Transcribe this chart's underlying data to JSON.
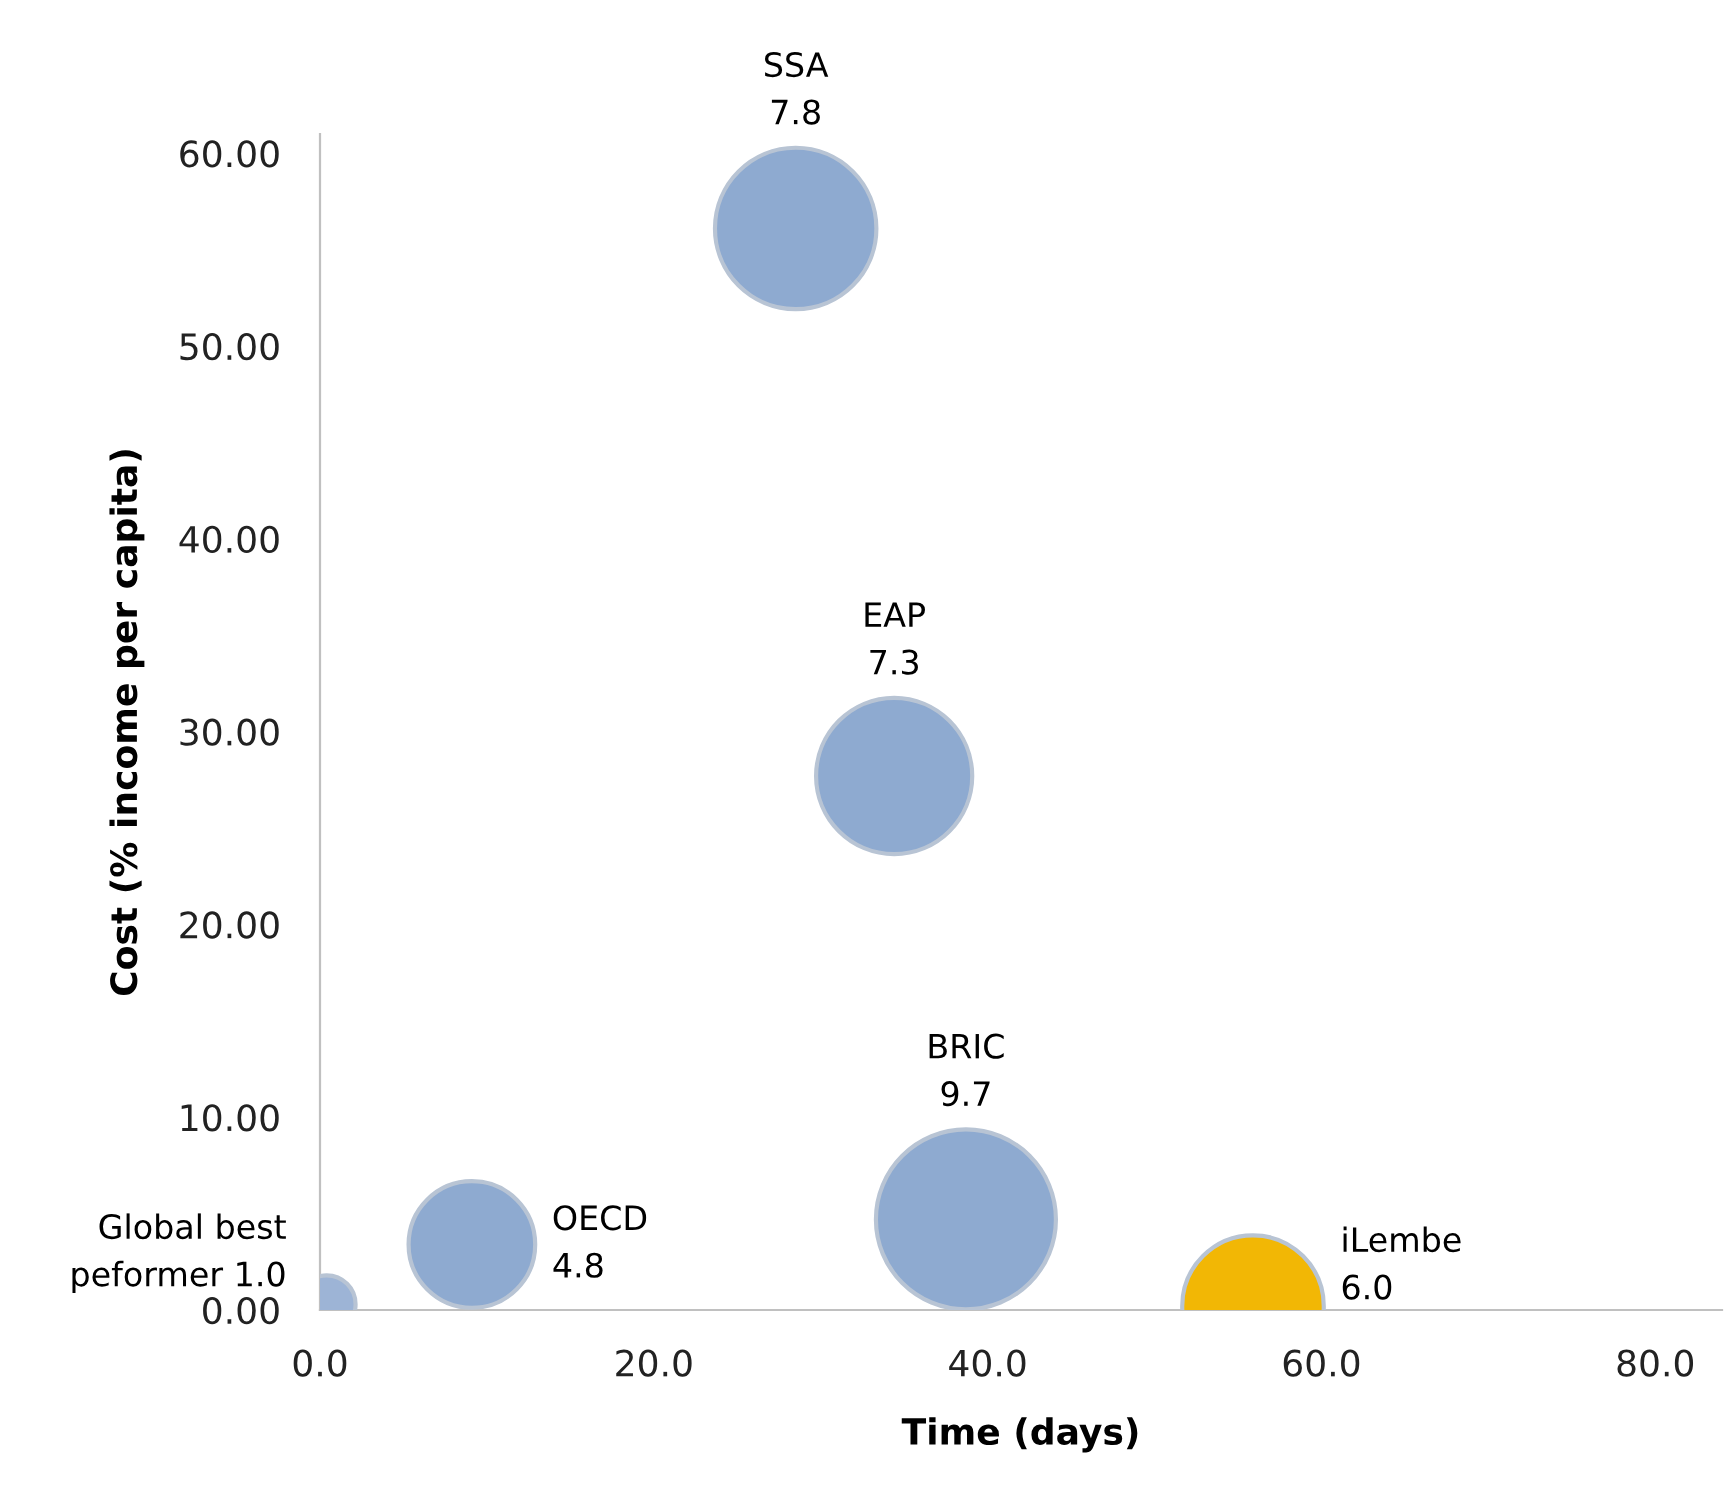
{
  "chart_data": {
    "type": "bubble",
    "xlabel": "Time (days)",
    "ylabel": "Cost (% income per capita)",
    "xlim": [
      0,
      84
    ],
    "ylim": [
      0,
      61
    ],
    "xticks": [
      {
        "value": 0,
        "label": "0.0"
      },
      {
        "value": 20,
        "label": "20.0"
      },
      {
        "value": 40,
        "label": "40.0"
      },
      {
        "value": 60,
        "label": "60.0"
      },
      {
        "value": 80,
        "label": "80.0"
      }
    ],
    "yticks": [
      {
        "value": 0,
        "label": "0.00"
      },
      {
        "value": 10,
        "label": "10.00"
      },
      {
        "value": 20,
        "label": "20.00"
      },
      {
        "value": 30,
        "label": "30.00"
      },
      {
        "value": 40,
        "label": "40.00"
      },
      {
        "value": 50,
        "label": "50.00"
      },
      {
        "value": 60,
        "label": "60.00"
      }
    ],
    "grid": false,
    "legend": false,
    "series": [
      {
        "name": "Global best\npeformer",
        "color": "#9db4d6",
        "x": [
          0.4
        ],
        "values": [
          0.3
        ],
        "sizes": [
          1.0
        ],
        "value_labels": [
          "1.0"
        ]
      },
      {
        "name": "OECD",
        "color": "#8eaad0",
        "x": [
          9.1
        ],
        "values": [
          3.4
        ],
        "sizes": [
          4.8
        ],
        "value_labels": [
          "4.8"
        ]
      },
      {
        "name": "SSA",
        "color": "#8eaad0",
        "x": [
          28.5
        ],
        "values": [
          56.1
        ],
        "sizes": [
          7.8
        ],
        "value_labels": [
          "7.8"
        ]
      },
      {
        "name": "EAP",
        "color": "#8eaad0",
        "x": [
          34.4
        ],
        "values": [
          27.7
        ],
        "sizes": [
          7.3
        ],
        "value_labels": [
          "7.3"
        ]
      },
      {
        "name": "BRIC",
        "color": "#8eaad0",
        "x": [
          38.7
        ],
        "values": [
          4.7
        ],
        "sizes": [
          9.7
        ],
        "value_labels": [
          "9.7"
        ]
      },
      {
        "name": "iLembe",
        "color": "#f2b705",
        "x": [
          55.9
        ],
        "values": [
          0.2
        ],
        "sizes": [
          6.0
        ],
        "value_labels": [
          "6.0"
        ]
      }
    ]
  }
}
